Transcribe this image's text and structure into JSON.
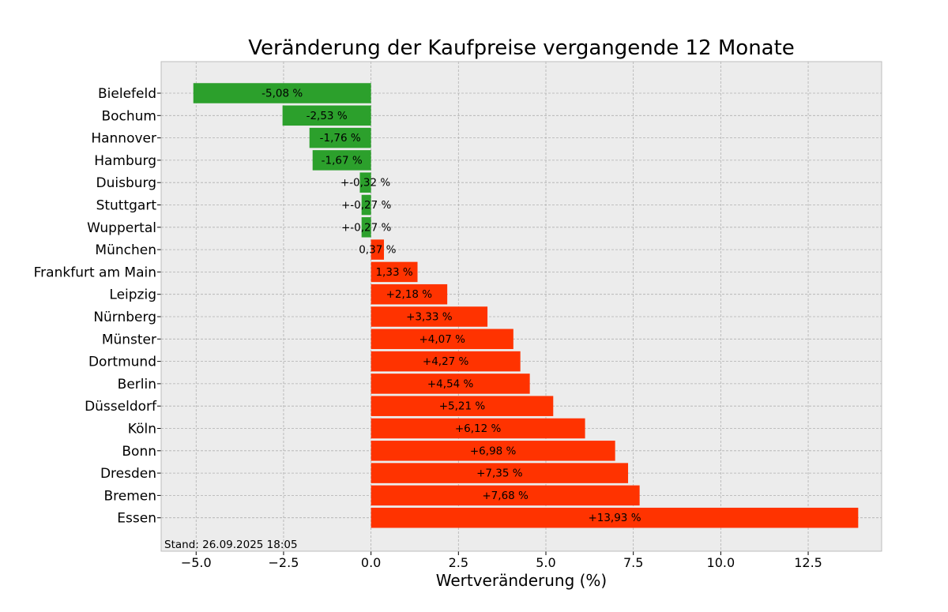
{
  "chart_data": {
    "type": "bar",
    "orientation": "horizontal",
    "title": "Veränderung der Kaufpreise vergangende 12 Monate",
    "xlabel": "Wertveränderung (%)",
    "ylabel": "",
    "xlim": [
      -6.0,
      14.6
    ],
    "xticks": [
      -5.0,
      -2.5,
      0.0,
      2.5,
      5.0,
      7.5,
      10.0,
      12.5
    ],
    "xtick_labels": [
      "−5.0",
      "−2.5",
      "0.0",
      "2.5",
      "5.0",
      "7.5",
      "10.0",
      "12.5"
    ],
    "grid": true,
    "categories": [
      "Bielefeld",
      "Bochum",
      "Hannover",
      "Hamburg",
      "Duisburg",
      "Stuttgart",
      "Wuppertal",
      "München",
      "Frankfurt am Main",
      "Leipzig",
      "Nürnberg",
      "Münster",
      "Dortmund",
      "Berlin",
      "Düsseldorf",
      "Köln",
      "Bonn",
      "Dresden",
      "Bremen",
      "Essen"
    ],
    "values": [
      -5.08,
      -2.53,
      -1.76,
      -1.67,
      -0.32,
      -0.27,
      -0.27,
      0.37,
      1.33,
      2.18,
      3.33,
      4.07,
      4.27,
      4.54,
      5.21,
      6.12,
      6.98,
      7.35,
      7.68,
      13.93
    ],
    "value_labels": [
      "-5,08 %",
      "-2,53 %",
      "-1,76 %",
      "-1,67 %",
      "+-0,32 %",
      "+-0,27 %",
      "+-0,27 %",
      "0,37 %",
      "1,33 %",
      "+2,18 %",
      "+3,33 %",
      "+4,07 %",
      "+4,27 %",
      "+4,54 %",
      "+5,21 %",
      "+6,12 %",
      "+6,98 %",
      "+7,35 %",
      "+7,68 %",
      "+13,93 %"
    ],
    "colors": {
      "negative": "#2ca02c",
      "positive": "#ff3300",
      "background": "#ececec",
      "frame": "#bcbcbc"
    },
    "footnote": "Stand: 26.09.2025 18:05"
  }
}
